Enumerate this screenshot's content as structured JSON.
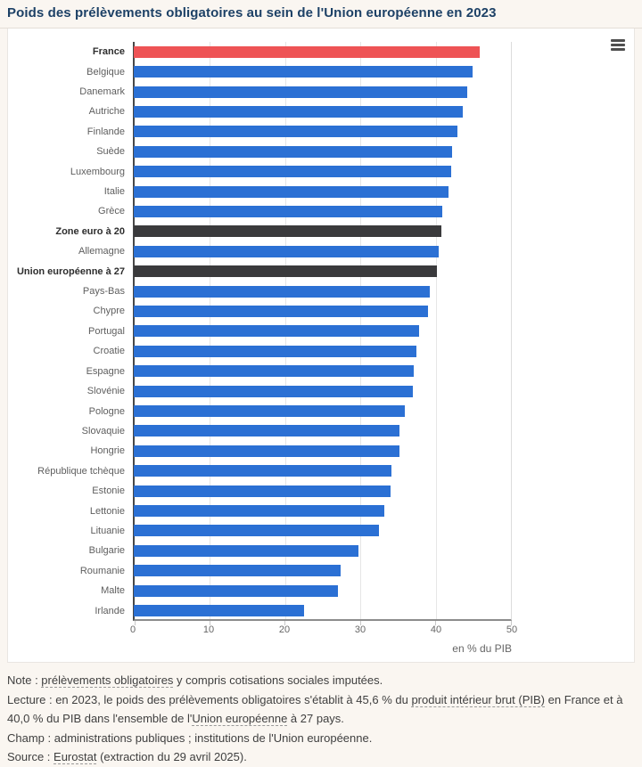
{
  "page": {
    "title": "Poids des prélèvements obligatoires au sein de l'Union européenne en 2023"
  },
  "icons": {
    "context_menu": "hamburger"
  },
  "chart_data": {
    "type": "bar",
    "orientation": "horizontal",
    "title": "Poids des prélèvements obligatoires au sein de l'Union européenne en 2023",
    "categories": [
      "France",
      "Belgique",
      "Danemark",
      "Autriche",
      "Finlande",
      "Suède",
      "Luxembourg",
      "Italie",
      "Grèce",
      "Zone euro à 20",
      "Allemagne",
      "Union européenne à 27",
      "Pays-Bas",
      "Chypre",
      "Portugal",
      "Croatie",
      "Espagne",
      "Slovénie",
      "Pologne",
      "Slovaquie",
      "Hongrie",
      "République tchèque",
      "Estonie",
      "Lettonie",
      "Lituanie",
      "Bulgarie",
      "Roumanie",
      "Malte",
      "Irlande"
    ],
    "values": [
      45.6,
      44.7,
      44.0,
      43.4,
      42.7,
      42.0,
      41.9,
      41.5,
      40.7,
      40.6,
      40.2,
      40.0,
      39.0,
      38.8,
      37.6,
      37.3,
      36.9,
      36.8,
      35.8,
      35.1,
      35.0,
      34.0,
      33.9,
      33.1,
      32.4,
      29.6,
      27.3,
      26.9,
      22.5
    ],
    "styles": [
      "highlight",
      "normal",
      "normal",
      "normal",
      "normal",
      "normal",
      "normal",
      "normal",
      "normal",
      "aggregate",
      "normal",
      "aggregate",
      "normal",
      "normal",
      "normal",
      "normal",
      "normal",
      "normal",
      "normal",
      "normal",
      "normal",
      "normal",
      "normal",
      "normal",
      "normal",
      "normal",
      "normal",
      "normal",
      "normal"
    ],
    "colors": {
      "normal": "#2b70d4",
      "highlight": "#ee5355",
      "aggregate": "#3a3a3c"
    },
    "xlabel": "en % du PIB",
    "xlim": [
      0,
      50
    ],
    "xticks": [
      0,
      10,
      20,
      30,
      40,
      50
    ],
    "grid": true,
    "legend_position": "none",
    "bold_categories": [
      "France",
      "Zone euro à 20",
      "Union européenne à 27"
    ]
  },
  "footer": {
    "lines": [
      {
        "segments": [
          {
            "text": "Note : "
          },
          {
            "text": "prélèvements obligatoires",
            "link": true
          },
          {
            "text": " y compris cotisations sociales imputées."
          }
        ]
      },
      {
        "segments": [
          {
            "text": "Lecture : en 2023, le poids des prélèvements obligatoires s'établit à 45,6 % du "
          },
          {
            "text": "produit intérieur brut (PIB)",
            "link": true
          },
          {
            "text": " en France et à 40,0 % du PIB dans l'ensemble de l'"
          },
          {
            "text": "Union européenne",
            "link": true
          },
          {
            "text": " à 27 pays."
          }
        ]
      },
      {
        "segments": [
          {
            "text": "Champ : administrations publiques ; institutions de l'Union européenne."
          }
        ]
      },
      {
        "segments": [
          {
            "text": "Source : "
          },
          {
            "text": "Eurostat",
            "link": true
          },
          {
            "text": " (extraction du 29 avril 2025)."
          }
        ]
      }
    ]
  }
}
